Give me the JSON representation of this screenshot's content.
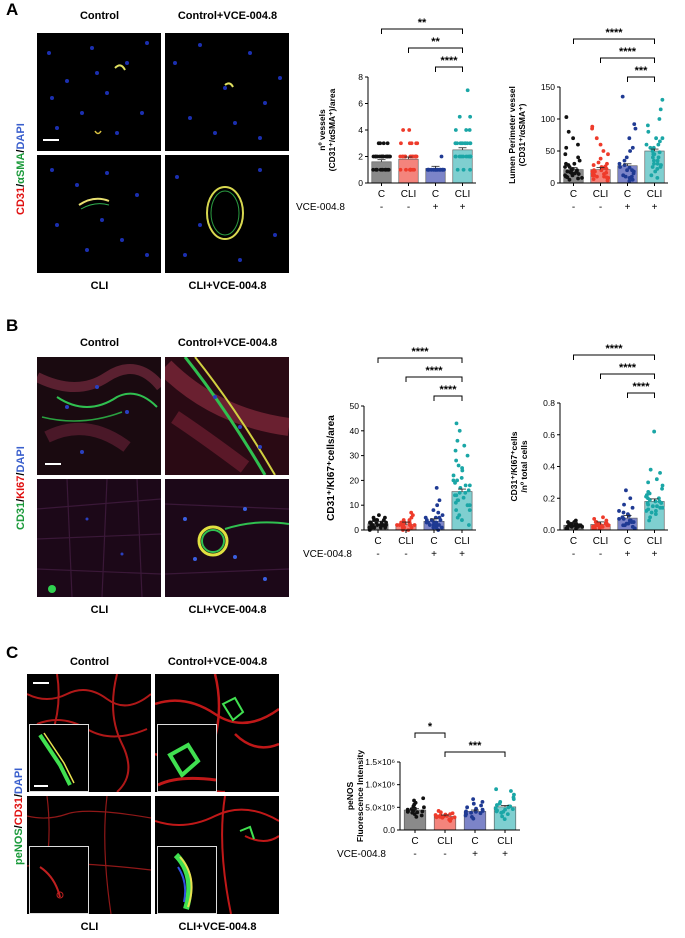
{
  "panels": [
    {
      "letter": "A",
      "micro_titles": {
        "tl": "Control",
        "tr": "Control+VCE-004.8",
        "bl": "CLI",
        "br": "CLI+VCE-004.8"
      },
      "stain_parts": [
        {
          "text": "CD31",
          "color": "#e01010"
        },
        {
          "text": "/",
          "color": "#000000"
        },
        {
          "text": "αSMA",
          "color": "#1a9a3a"
        },
        {
          "text": "/",
          "color": "#000000"
        },
        {
          "text": "DAPI",
          "color": "#3a5fcd"
        }
      ]
    },
    {
      "letter": "B",
      "micro_titles": {
        "tl": "Control",
        "tr": "Control+VCE-004.8",
        "bl": "CLI",
        "br": "CLI+VCE-004.8"
      },
      "stain_parts": [
        {
          "text": "CD31",
          "color": "#1a9a3a"
        },
        {
          "text": "/",
          "color": "#000000"
        },
        {
          "text": "KI67",
          "color": "#e01010"
        },
        {
          "text": "/",
          "color": "#000000"
        },
        {
          "text": "DAPI",
          "color": "#3a5fcd"
        }
      ]
    },
    {
      "letter": "C",
      "micro_titles": {
        "tl": "Control",
        "tr": "Control+VCE-004.8",
        "bl": "CLI",
        "br": "CLI+VCE-004.8"
      },
      "stain_parts": [
        {
          "text": "peNOS",
          "color": "#1a9a3a"
        },
        {
          "text": "/",
          "color": "#000000"
        },
        {
          "text": "CD31",
          "color": "#e01010"
        },
        {
          "text": "/",
          "color": "#000000"
        },
        {
          "text": "DAPI",
          "color": "#3a5fcd"
        }
      ]
    }
  ],
  "chart_data": [
    {
      "id": "A1",
      "type": "bar",
      "categories": [
        "C",
        "CLI",
        "C",
        "CLI"
      ],
      "treatment_label": "VCE-004.8",
      "treatment": [
        "-",
        "-",
        "+",
        "+"
      ],
      "ylabel_lines": [
        "nº vessels",
        "(CD31⁺/αSMA⁺)/area"
      ],
      "ylim": [
        0,
        8
      ],
      "yticks": [
        0,
        2,
        4,
        6,
        8
      ],
      "ytick_labels": [
        "0",
        "2",
        "4",
        "6",
        "8"
      ],
      "values": [
        1.6,
        1.8,
        1.1,
        2.5
      ],
      "colors": [
        "#8a8a8a",
        "#f4847c",
        "#7c84c8",
        "#7fcfd0"
      ],
      "point_colors": [
        "#111111",
        "#ee3b2b",
        "#1f3a93",
        "#1aa6a6"
      ],
      "points": [
        [
          1,
          1,
          1,
          1,
          2,
          2,
          2,
          2,
          2,
          1,
          1,
          2,
          2,
          2,
          3,
          3,
          3,
          1,
          2,
          1,
          1,
          2,
          2,
          3,
          2,
          1,
          1,
          2,
          1,
          2
        ],
        [
          1,
          1,
          1,
          2,
          2,
          2,
          2,
          2,
          3,
          3,
          3,
          3,
          4,
          1,
          1,
          2,
          2,
          2,
          1,
          2,
          2,
          2,
          3,
          1,
          2,
          2,
          1,
          1,
          2,
          4
        ],
        [
          1,
          1,
          1,
          1,
          1,
          1,
          1,
          1,
          1,
          1,
          1,
          1,
          1,
          1,
          1,
          1,
          1,
          1,
          1,
          1,
          1,
          1,
          1,
          1,
          2,
          1,
          1,
          1,
          1,
          1
        ],
        [
          1,
          1,
          2,
          2,
          2,
          2,
          3,
          3,
          3,
          3,
          3,
          3,
          3,
          4,
          4,
          4,
          5,
          5,
          7,
          2,
          2,
          3,
          3,
          2,
          2,
          3,
          1,
          2,
          3,
          2
        ]
      ],
      "brackets": [
        {
          "from": 0,
          "to": 3,
          "label": "**"
        },
        {
          "from": 1,
          "to": 3,
          "label": "**"
        },
        {
          "from": 2,
          "to": 3,
          "label": "****"
        }
      ]
    },
    {
      "id": "A2",
      "type": "bar",
      "categories": [
        "C",
        "CLI",
        "C",
        "CLI"
      ],
      "treatment_label": "",
      "treatment": [
        "-",
        "-",
        "+",
        "+"
      ],
      "ylabel_lines": [
        "Lumen Perimeter vessel",
        "(CD31⁺/αSMA⁺)"
      ],
      "ylim": [
        0,
        150
      ],
      "yticks": [
        0,
        50,
        100,
        150
      ],
      "ytick_labels": [
        "0",
        "50",
        "100",
        "150"
      ],
      "values": [
        21,
        21,
        27,
        50
      ],
      "colors": [
        "#8a8a8a",
        "#f4847c",
        "#7c84c8",
        "#7fcfd0"
      ],
      "point_colors": [
        "#111111",
        "#ee3b2b",
        "#1f3a93",
        "#1aa6a6"
      ],
      "points": [
        [
          5,
          8,
          10,
          12,
          14,
          15,
          17,
          18,
          20,
          22,
          25,
          28,
          30,
          35,
          40,
          45,
          55,
          60,
          70,
          80,
          103,
          10,
          12,
          15,
          9,
          7,
          20,
          25,
          30,
          18
        ],
        [
          4,
          6,
          8,
          10,
          12,
          14,
          16,
          18,
          20,
          22,
          25,
          28,
          32,
          38,
          45,
          50,
          60,
          70,
          85,
          88,
          10,
          12,
          14,
          9,
          16,
          20,
          24,
          30,
          18,
          26
        ],
        [
          3,
          5,
          8,
          10,
          12,
          15,
          18,
          20,
          25,
          30,
          35,
          40,
          50,
          55,
          70,
          85,
          92,
          135,
          10,
          20,
          28,
          24
        ],
        [
          8,
          12,
          18,
          22,
          25,
          28,
          30,
          35,
          40,
          45,
          50,
          55,
          60,
          65,
          70,
          80,
          90,
          100,
          115,
          130,
          40,
          45,
          50,
          55,
          35,
          30,
          25,
          60,
          70,
          48
        ]
      ],
      "brackets": [
        {
          "from": 0,
          "to": 3,
          "label": "****"
        },
        {
          "from": 1,
          "to": 3,
          "label": "****"
        },
        {
          "from": 2,
          "to": 3,
          "label": "***"
        }
      ]
    },
    {
      "id": "B1",
      "type": "bar",
      "categories": [
        "C",
        "CLI",
        "C",
        "CLI"
      ],
      "treatment_label": "VCE-004.8",
      "treatment": [
        "-",
        "-",
        "+",
        "+"
      ],
      "ylabel_lines": [
        "CD31⁺/KI67⁺cells/area"
      ],
      "ylim": [
        0,
        50
      ],
      "yticks": [
        0,
        10,
        20,
        30,
        40,
        50
      ],
      "ytick_labels": [
        "0",
        "10",
        "20",
        "30",
        "40",
        "50"
      ],
      "values": [
        2.5,
        2.2,
        3.5,
        15.5
      ],
      "colors": [
        "#8a8a8a",
        "#f4847c",
        "#7c84c8",
        "#7fcfd0"
      ],
      "point_colors": [
        "#111111",
        "#ee3b2b",
        "#1f3a93",
        "#1aa6a6"
      ],
      "points": [
        [
          0,
          1,
          1,
          1,
          2,
          2,
          2,
          2,
          3,
          3,
          3,
          3,
          4,
          4,
          4,
          5,
          5,
          6,
          1,
          2,
          3,
          2,
          1,
          3,
          2,
          4
        ],
        [
          0,
          0,
          1,
          1,
          1,
          2,
          2,
          2,
          2,
          3,
          3,
          3,
          4,
          4,
          5,
          6,
          7,
          1,
          2,
          1,
          2,
          3,
          2
        ],
        [
          0,
          1,
          1,
          2,
          2,
          2,
          3,
          3,
          3,
          4,
          4,
          5,
          5,
          6,
          7,
          8,
          10,
          12,
          17,
          2,
          3,
          4,
          1,
          2,
          5,
          3
        ],
        [
          2,
          4,
          5,
          6,
          8,
          10,
          11,
          12,
          13,
          14,
          15,
          16,
          17,
          18,
          19,
          20,
          21,
          22,
          24,
          25,
          26,
          28,
          30,
          32,
          34,
          36,
          40,
          43,
          15,
          12,
          10,
          18,
          20,
          8,
          14
        ]
      ],
      "brackets": [
        {
          "from": 0,
          "to": 3,
          "label": "****"
        },
        {
          "from": 1,
          "to": 3,
          "label": "****"
        },
        {
          "from": 2,
          "to": 3,
          "label": "****"
        }
      ]
    },
    {
      "id": "B2",
      "type": "bar",
      "categories": [
        "C",
        "CLI",
        "C",
        "CLI"
      ],
      "treatment_label": "",
      "treatment": [
        "-",
        "-",
        "+",
        "+"
      ],
      "ylabel_lines": [
        "CD31⁺/KI67⁺cells",
        "/nº total cells"
      ],
      "ylim": [
        0,
        0.8
      ],
      "yticks": [
        0,
        0.2,
        0.4,
        0.6,
        0.8
      ],
      "ytick_labels": [
        "0.0",
        "0.2",
        "0.4",
        "0.6",
        "0.8"
      ],
      "values": [
        0.03,
        0.035,
        0.075,
        0.18
      ],
      "colors": [
        "#8a8a8a",
        "#f4847c",
        "#7c84c8",
        "#7fcfd0"
      ],
      "point_colors": [
        "#111111",
        "#ee3b2b",
        "#1f3a93",
        "#1aa6a6"
      ],
      "points": [
        [
          0.01,
          0.01,
          0.02,
          0.02,
          0.02,
          0.03,
          0.03,
          0.03,
          0.04,
          0.04,
          0.05,
          0.05,
          0.06,
          0.02,
          0.03,
          0.01,
          0.04,
          0.03,
          0.02,
          0.04
        ],
        [
          0.01,
          0.01,
          0.02,
          0.02,
          0.03,
          0.03,
          0.03,
          0.04,
          0.04,
          0.05,
          0.05,
          0.06,
          0.07,
          0.08,
          0.02,
          0.03,
          0.01,
          0.04,
          0.02,
          0.03
        ],
        [
          0.01,
          0.02,
          0.03,
          0.04,
          0.05,
          0.06,
          0.07,
          0.08,
          0.09,
          0.1,
          0.11,
          0.12,
          0.14,
          0.16,
          0.2,
          0.25,
          0.05,
          0.06,
          0.04,
          0.08,
          0.07,
          0.03
        ],
        [
          0.06,
          0.08,
          0.1,
          0.12,
          0.13,
          0.14,
          0.15,
          0.16,
          0.17,
          0.18,
          0.19,
          0.2,
          0.21,
          0.22,
          0.24,
          0.26,
          0.28,
          0.3,
          0.32,
          0.36,
          0.38,
          0.62,
          0.15,
          0.17,
          0.2,
          0.12,
          0.14,
          0.18,
          0.23,
          0.11
        ]
      ],
      "brackets": [
        {
          "from": 0,
          "to": 3,
          "label": "****"
        },
        {
          "from": 1,
          "to": 3,
          "label": "****"
        },
        {
          "from": 2,
          "to": 3,
          "label": "****"
        }
      ]
    },
    {
      "id": "C1",
      "type": "bar",
      "categories": [
        "C",
        "CLI",
        "C",
        "CLI"
      ],
      "treatment_label": "VCE-004.8",
      "treatment": [
        "-",
        "-",
        "+",
        "+"
      ],
      "ylabel_lines": [
        "peNOS",
        "Fluorescence Intensity"
      ],
      "ylim": [
        0,
        1500000
      ],
      "yticks": [
        0,
        500000,
        1000000,
        1500000
      ],
      "ytick_labels": [
        "0.0",
        "5.0×10⁵",
        "1.0×10⁶",
        "1.5×10⁶"
      ],
      "values": [
        440000,
        300000,
        410000,
        510000
      ],
      "colors": [
        "#8a8a8a",
        "#f4847c",
        "#7c84c8",
        "#7fcfd0"
      ],
      "point_colors": [
        "#111111",
        "#ee3b2b",
        "#1f3a93",
        "#1aa6a6"
      ],
      "points": [
        [
          290000,
          320000,
          350000,
          380000,
          400000,
          420000,
          430000,
          450000,
          460000,
          480000,
          500000,
          520000,
          560000,
          600000,
          650000,
          700000,
          410000,
          470000,
          390000
        ],
        [
          200000,
          230000,
          250000,
          270000,
          280000,
          290000,
          300000,
          310000,
          320000,
          330000,
          340000,
          350000,
          370000,
          390000,
          420000,
          300000,
          280000
        ],
        [
          250000,
          290000,
          320000,
          350000,
          370000,
          390000,
          400000,
          410000,
          430000,
          450000,
          470000,
          500000,
          540000,
          580000,
          620000,
          680000,
          420000,
          380000
        ],
        [
          240000,
          300000,
          350000,
          380000,
          400000,
          430000,
          450000,
          480000,
          500000,
          520000,
          550000,
          580000,
          620000,
          680000,
          720000,
          780000,
          860000,
          900000,
          460000,
          410000,
          520000
        ]
      ],
      "brackets": [
        {
          "from": 0,
          "to": 1,
          "label": "*"
        },
        {
          "from": 1,
          "to": 3,
          "label": "***"
        }
      ]
    }
  ]
}
